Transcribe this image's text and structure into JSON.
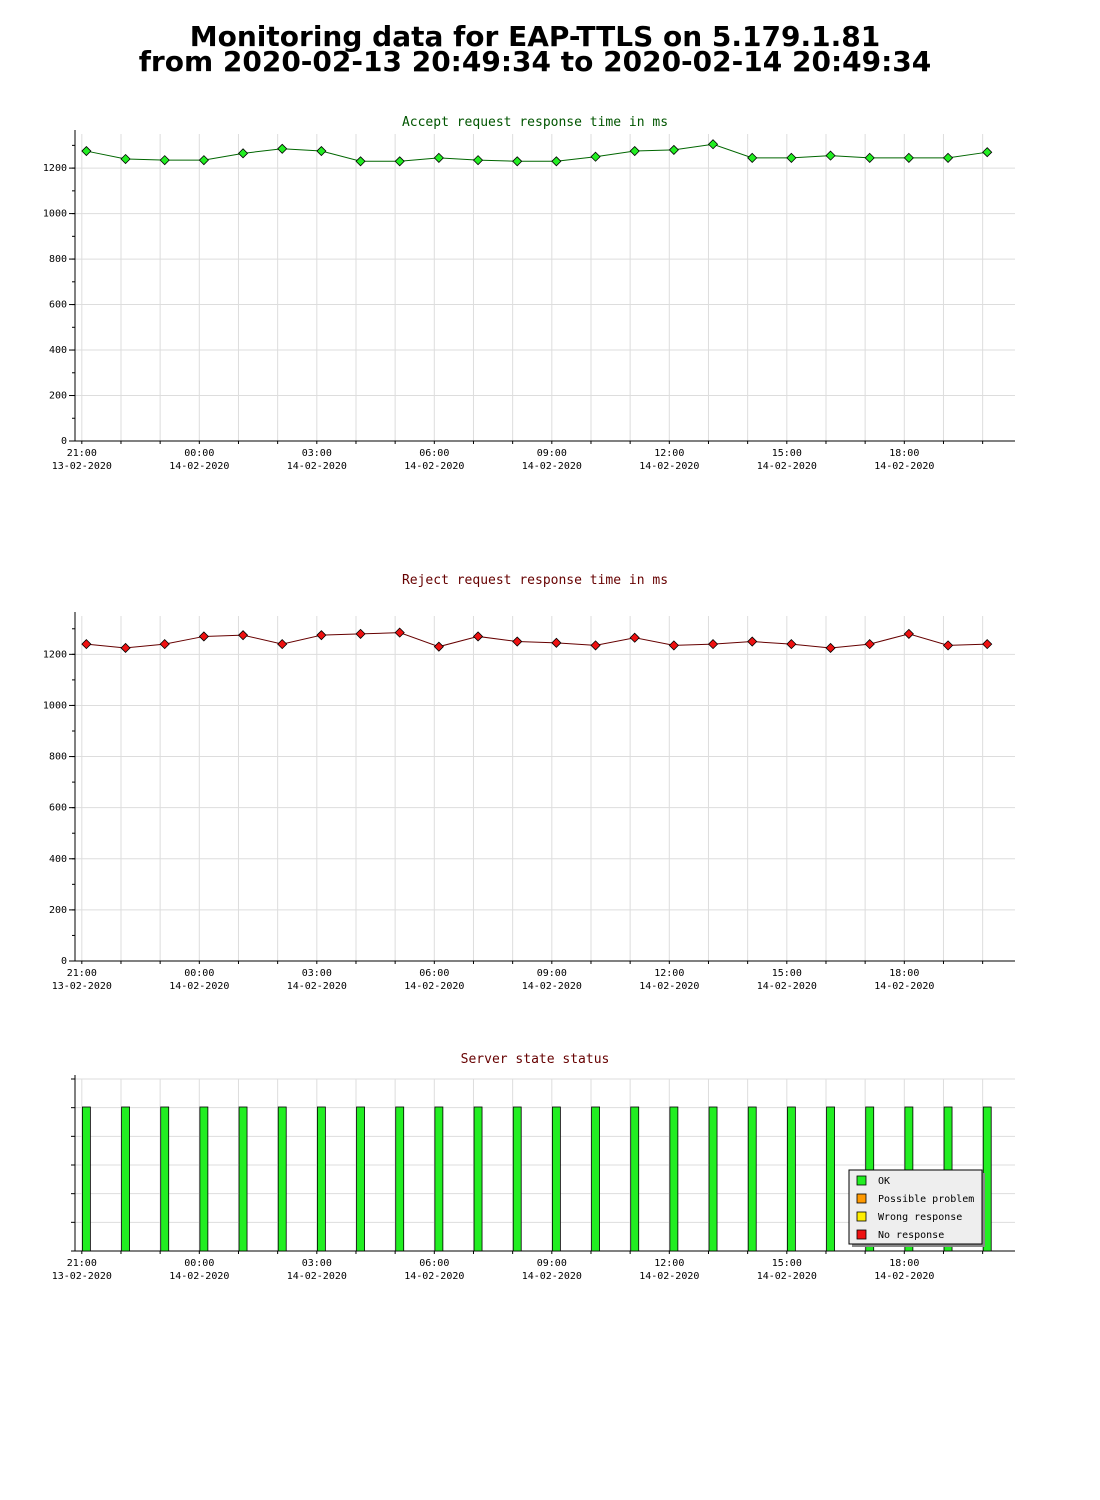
{
  "page": {
    "title_line1": "Monitoring data for EAP-TTLS on 5.179.1.81",
    "title_line2": "from 2020-02-13 20:49:34 to 2020-02-14 20:49:34"
  },
  "colors": {
    "accept_line": "#006600",
    "accept_marker": "#22ee22",
    "reject_line": "#660000",
    "reject_marker": "#ee1111",
    "ok": "#22ee22",
    "possible_problem": "#ff9900",
    "wrong_response": "#ffee00",
    "no_response": "#ee1111",
    "grid": "#dddddd",
    "title_accept": "#005500",
    "title_reject": "#660000",
    "title_status": "#660000"
  },
  "chart_data": [
    {
      "id": "accept",
      "type": "line",
      "title": "Accept request response time in ms",
      "xlabel": "",
      "ylabel": "",
      "ylim": [
        0,
        1350
      ],
      "yticks": [
        0,
        200,
        400,
        600,
        800,
        1000,
        1200
      ],
      "xlim": [
        "2020-02-13 20:49:34",
        "2020-02-14 20:49:34"
      ],
      "xticks": [
        {
          "time": "2020-02-13 21:00",
          "label1": "21:00",
          "label2": "13-02-2020"
        },
        {
          "time": "2020-02-14 00:00",
          "label1": "00:00",
          "label2": "14-02-2020"
        },
        {
          "time": "2020-02-14 03:00",
          "label1": "03:00",
          "label2": "14-02-2020"
        },
        {
          "time": "2020-02-14 06:00",
          "label1": "06:00",
          "label2": "14-02-2020"
        },
        {
          "time": "2020-02-14 09:00",
          "label1": "09:00",
          "label2": "14-02-2020"
        },
        {
          "time": "2020-02-14 12:00",
          "label1": "12:00",
          "label2": "14-02-2020"
        },
        {
          "time": "2020-02-14 15:00",
          "label1": "15:00",
          "label2": "14-02-2020"
        },
        {
          "time": "2020-02-14 18:00",
          "label1": "18:00",
          "label2": "14-02-2020"
        }
      ],
      "grid": true,
      "x": [
        "2020-02-13 21:07",
        "2020-02-13 22:07",
        "2020-02-13 23:07",
        "2020-02-14 00:07",
        "2020-02-14 01:07",
        "2020-02-14 02:07",
        "2020-02-14 03:07",
        "2020-02-14 04:07",
        "2020-02-14 05:07",
        "2020-02-14 06:07",
        "2020-02-14 07:07",
        "2020-02-14 08:07",
        "2020-02-14 09:07",
        "2020-02-14 10:07",
        "2020-02-14 11:07",
        "2020-02-14 12:07",
        "2020-02-14 13:07",
        "2020-02-14 14:07",
        "2020-02-14 15:07",
        "2020-02-14 16:07",
        "2020-02-14 17:07",
        "2020-02-14 18:07",
        "2020-02-14 19:07",
        "2020-02-14 20:07"
      ],
      "values": [
        1275,
        1240,
        1235,
        1235,
        1265,
        1285,
        1275,
        1230,
        1230,
        1245,
        1235,
        1230,
        1230,
        1250,
        1275,
        1280,
        1305,
        1245,
        1245,
        1255,
        1245,
        1245,
        1245,
        1270
      ]
    },
    {
      "id": "reject",
      "type": "line",
      "title": "Reject request response time in ms",
      "xlabel": "",
      "ylabel": "",
      "ylim": [
        0,
        1350
      ],
      "yticks": [
        0,
        200,
        400,
        600,
        800,
        1000,
        1200
      ],
      "xlim": [
        "2020-02-13 20:49:34",
        "2020-02-14 20:49:34"
      ],
      "xticks": [
        {
          "time": "2020-02-13 21:00",
          "label1": "21:00",
          "label2": "13-02-2020"
        },
        {
          "time": "2020-02-14 00:00",
          "label1": "00:00",
          "label2": "14-02-2020"
        },
        {
          "time": "2020-02-14 03:00",
          "label1": "03:00",
          "label2": "14-02-2020"
        },
        {
          "time": "2020-02-14 06:00",
          "label1": "06:00",
          "label2": "14-02-2020"
        },
        {
          "time": "2020-02-14 09:00",
          "label1": "09:00",
          "label2": "14-02-2020"
        },
        {
          "time": "2020-02-14 12:00",
          "label1": "12:00",
          "label2": "14-02-2020"
        },
        {
          "time": "2020-02-14 15:00",
          "label1": "15:00",
          "label2": "14-02-2020"
        },
        {
          "time": "2020-02-14 18:00",
          "label1": "18:00",
          "label2": "14-02-2020"
        }
      ],
      "grid": true,
      "x": [
        "2020-02-13 21:07",
        "2020-02-13 22:07",
        "2020-02-13 23:07",
        "2020-02-14 00:07",
        "2020-02-14 01:07",
        "2020-02-14 02:07",
        "2020-02-14 03:07",
        "2020-02-14 04:07",
        "2020-02-14 05:07",
        "2020-02-14 06:07",
        "2020-02-14 07:07",
        "2020-02-14 08:07",
        "2020-02-14 09:07",
        "2020-02-14 10:07",
        "2020-02-14 11:07",
        "2020-02-14 12:07",
        "2020-02-14 13:07",
        "2020-02-14 14:07",
        "2020-02-14 15:07",
        "2020-02-14 16:07",
        "2020-02-14 17:07",
        "2020-02-14 18:07",
        "2020-02-14 19:07",
        "2020-02-14 20:07"
      ],
      "values": [
        1240,
        1225,
        1240,
        1270,
        1275,
        1240,
        1275,
        1280,
        1285,
        1230,
        1270,
        1250,
        1245,
        1235,
        1265,
        1235,
        1240,
        1250,
        1240,
        1225,
        1240,
        1280,
        1235,
        1240
      ]
    },
    {
      "id": "status",
      "type": "bar",
      "title": "Server state status",
      "xlabel": "",
      "ylabel": "",
      "xlim": [
        "2020-02-13 20:49:34",
        "2020-02-14 20:49:34"
      ],
      "xticks": [
        {
          "time": "2020-02-13 21:00",
          "label1": "21:00",
          "label2": "13-02-2020"
        },
        {
          "time": "2020-02-14 00:00",
          "label1": "00:00",
          "label2": "14-02-2020"
        },
        {
          "time": "2020-02-14 03:00",
          "label1": "03:00",
          "label2": "14-02-2020"
        },
        {
          "time": "2020-02-14 06:00",
          "label1": "06:00",
          "label2": "14-02-2020"
        },
        {
          "time": "2020-02-14 09:00",
          "label1": "09:00",
          "label2": "14-02-2020"
        },
        {
          "time": "2020-02-14 12:00",
          "label1": "12:00",
          "label2": "14-02-2020"
        },
        {
          "time": "2020-02-14 15:00",
          "label1": "15:00",
          "label2": "14-02-2020"
        },
        {
          "time": "2020-02-14 18:00",
          "label1": "18:00",
          "label2": "14-02-2020"
        }
      ],
      "grid": true,
      "legend_position": "bottom-right",
      "legend": [
        {
          "key": "ok",
          "label": "OK"
        },
        {
          "key": "possible_problem",
          "label": "Possible problem"
        },
        {
          "key": "wrong_response",
          "label": "Wrong response"
        },
        {
          "key": "no_response",
          "label": "No response"
        }
      ],
      "x": [
        "2020-02-13 21:07",
        "2020-02-13 22:07",
        "2020-02-13 23:07",
        "2020-02-14 00:07",
        "2020-02-14 01:07",
        "2020-02-14 02:07",
        "2020-02-14 03:07",
        "2020-02-14 04:07",
        "2020-02-14 05:07",
        "2020-02-14 06:07",
        "2020-02-14 07:07",
        "2020-02-14 08:07",
        "2020-02-14 09:07",
        "2020-02-14 10:07",
        "2020-02-14 11:07",
        "2020-02-14 12:07",
        "2020-02-14 13:07",
        "2020-02-14 14:07",
        "2020-02-14 15:07",
        "2020-02-14 16:07",
        "2020-02-14 17:07",
        "2020-02-14 18:07",
        "2020-02-14 19:07",
        "2020-02-14 20:07"
      ],
      "states": [
        "ok",
        "ok",
        "ok",
        "ok",
        "ok",
        "ok",
        "ok",
        "ok",
        "ok",
        "ok",
        "ok",
        "ok",
        "ok",
        "ok",
        "ok",
        "ok",
        "ok",
        "ok",
        "ok",
        "ok",
        "ok",
        "ok",
        "ok",
        "ok"
      ]
    }
  ]
}
